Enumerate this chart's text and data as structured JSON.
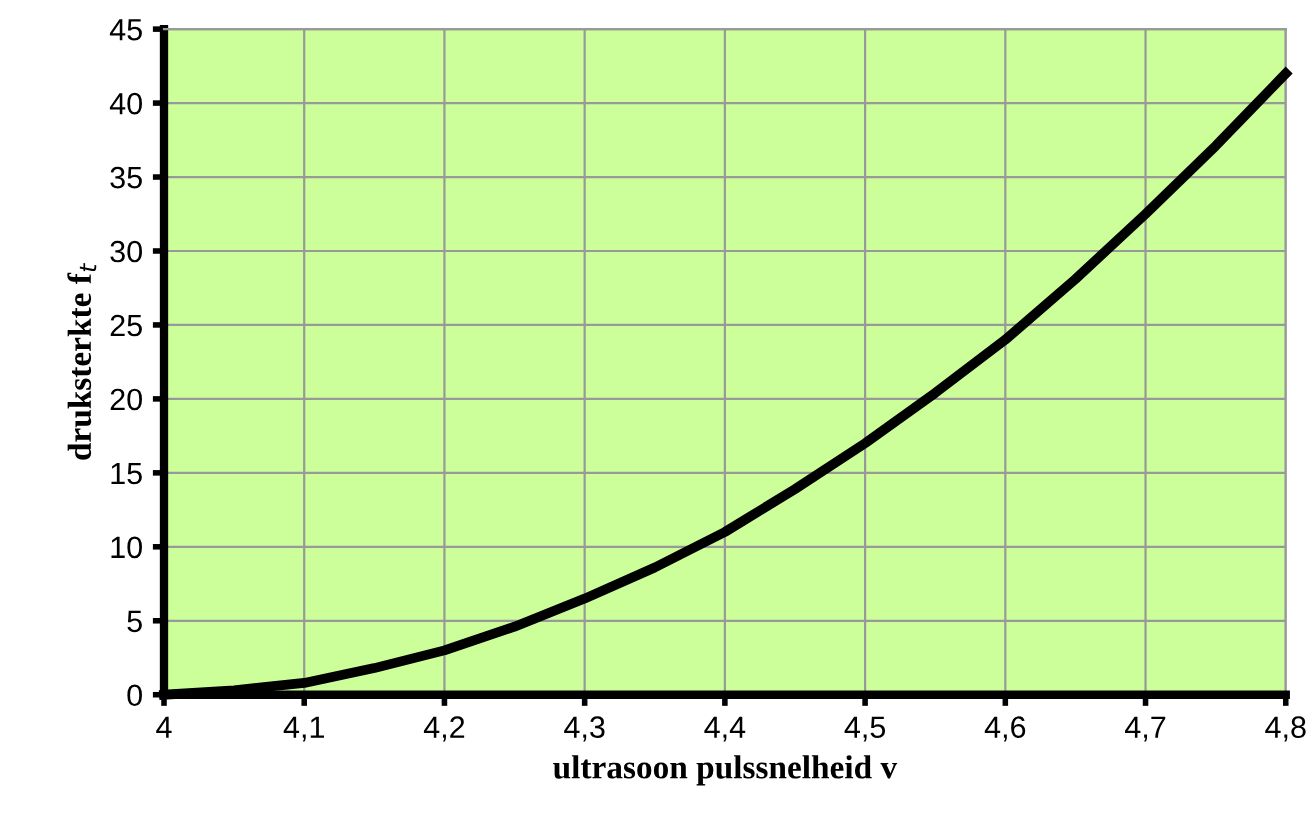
{
  "chart_data": {
    "type": "line",
    "xlabel": "ultrasoon pulssnelheid v",
    "ylabel": "druksterkte f$_{t}$",
    "x": [
      4,
      4.05,
      4.1,
      4.15,
      4.2,
      4.25,
      4.3,
      4.35,
      4.4,
      4.45,
      4.5,
      4.55,
      4.6,
      4.65,
      4.7,
      4.75,
      4.8
    ],
    "series": [
      {
        "color": "#000000",
        "values": [
          0,
          0.3,
          0.8,
          1.8,
          3,
          4.6,
          6.5,
          8.6,
          11,
          13.9,
          17,
          20.4,
          24,
          28.1,
          32.5,
          37.1,
          42
        ]
      }
    ],
    "xlim": [
      4,
      4.8
    ],
    "ylim": [
      0,
      45
    ],
    "xticks": [
      4,
      {
        "value": 4.1,
        "label": "4,1"
      },
      {
        "value": 4.2,
        "label": "4,2"
      },
      {
        "value": 4.3,
        "label": "4,3"
      },
      {
        "value": 4.4,
        "label": "4,4"
      },
      {
        "value": 4.5,
        "label": "4,5"
      },
      {
        "value": 4.6,
        "label": "4,6"
      },
      {
        "value": 4.7,
        "label": "4,7"
      },
      {
        "value": 4.8,
        "label": "4,8"
      }
    ],
    "yticks": [
      0,
      5,
      10,
      15,
      20,
      25,
      30,
      35,
      40,
      45
    ],
    "grid": true,
    "marker": "none",
    "line_style": "solid"
  }
}
